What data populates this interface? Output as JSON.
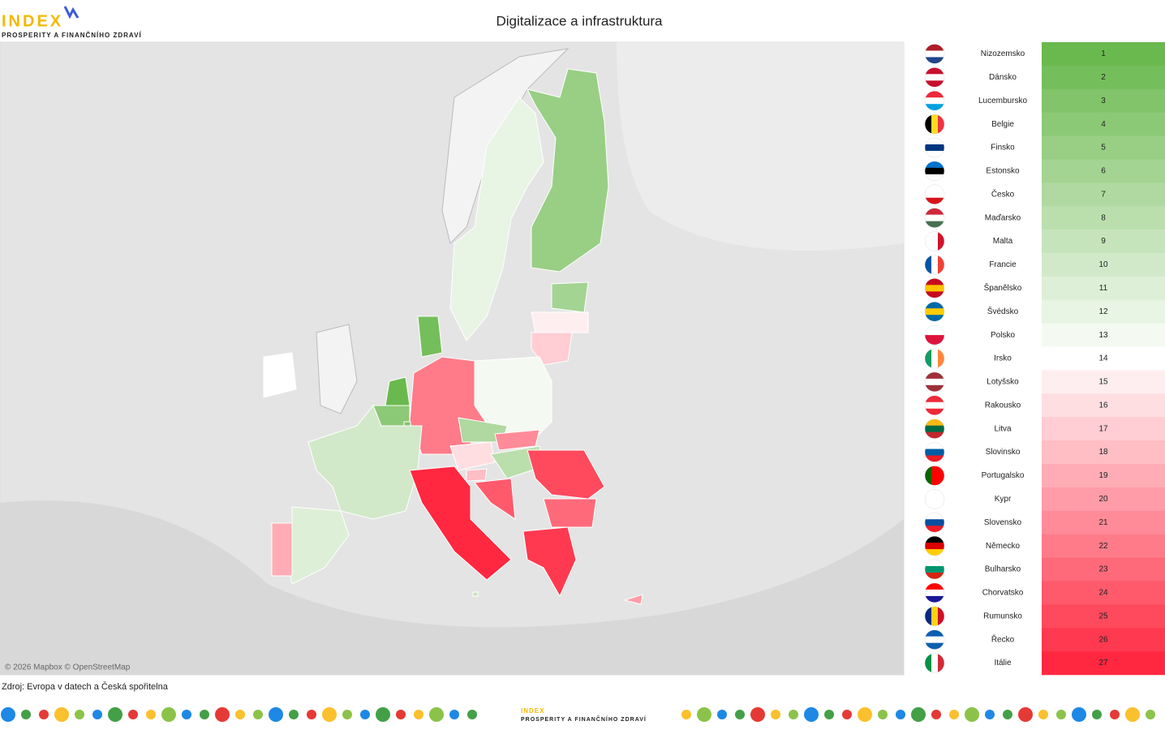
{
  "header": {
    "logo": "INDEX",
    "logo_subtitle": "PROSPERITY A FINANČNÍHO ZDRAVÍ",
    "title": "Digitalizace a infrastruktura"
  },
  "map": {
    "attribution": "© 2026 Mapbox © OpenStreetMap"
  },
  "table": {
    "rows": [
      {
        "country": "Nizozemsko",
        "rank": 1
      },
      {
        "country": "Dánsko",
        "rank": 2
      },
      {
        "country": "Lucembursko",
        "rank": 3
      },
      {
        "country": "Belgie",
        "rank": 4
      },
      {
        "country": "Finsko",
        "rank": 5
      },
      {
        "country": "Estonsko",
        "rank": 6
      },
      {
        "country": "Česko",
        "rank": 7
      },
      {
        "country": "Maďarsko",
        "rank": 8
      },
      {
        "country": "Malta",
        "rank": 9
      },
      {
        "country": "Francie",
        "rank": 10
      },
      {
        "country": "Španělsko",
        "rank": 11
      },
      {
        "country": "Švédsko",
        "rank": 12
      },
      {
        "country": "Polsko",
        "rank": 13
      },
      {
        "country": "Irsko",
        "rank": 14
      },
      {
        "country": "Lotyšsko",
        "rank": 15
      },
      {
        "country": "Rakousko",
        "rank": 16
      },
      {
        "country": "Litva",
        "rank": 17
      },
      {
        "country": "Slovinsko",
        "rank": 18
      },
      {
        "country": "Portugalsko",
        "rank": 19
      },
      {
        "country": "Kypr",
        "rank": 20
      },
      {
        "country": "Slovensko",
        "rank": 21
      },
      {
        "country": "Německo",
        "rank": 22
      },
      {
        "country": "Bulharsko",
        "rank": 23
      },
      {
        "country": "Chorvatsko",
        "rank": 24
      },
      {
        "country": "Rumunsko",
        "rank": 25
      },
      {
        "country": "Řecko",
        "rank": 26
      },
      {
        "country": "Itálie",
        "rank": 27
      }
    ]
  },
  "footer": {
    "source": "Zdroj: Evropa v datech a Česká spořitelna"
  }
}
